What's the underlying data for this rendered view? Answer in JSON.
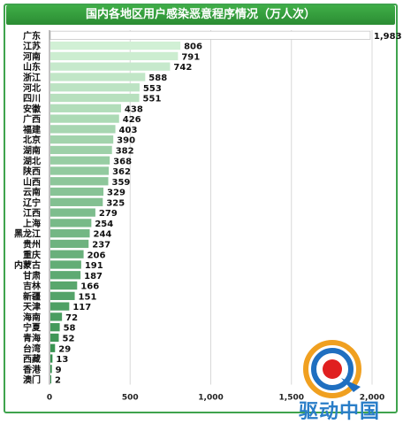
{
  "title": "国内各地区用户感染恶意程序情况（万人次）",
  "colors": {
    "title_bg": "#2e9638",
    "frame": "#3fa34d",
    "bar_dark": "#2a8a45",
    "bar_light": "#d6f3d9"
  },
  "chart_data": {
    "type": "bar",
    "orientation": "horizontal",
    "title": "国内各地区用户感染恶意程序情况（万人次）",
    "categories": [
      "广东",
      "江苏",
      "河南",
      "山东",
      "浙江",
      "河北",
      "四川",
      "安徽",
      "广西",
      "福建",
      "北京",
      "湖南",
      "湖北",
      "陕西",
      "山西",
      "云南",
      "辽宁",
      "江西",
      "上海",
      "黑龙江",
      "贵州",
      "重庆",
      "内蒙古",
      "甘肃",
      "吉林",
      "新疆",
      "天津",
      "海南",
      "宁夏",
      "青海",
      "台湾",
      "西藏",
      "香港",
      "澳门"
    ],
    "values": [
      1983,
      806,
      791,
      742,
      588,
      553,
      551,
      438,
      426,
      403,
      390,
      382,
      368,
      362,
      359,
      329,
      325,
      279,
      254,
      244,
      237,
      206,
      191,
      187,
      166,
      151,
      117,
      72,
      58,
      52,
      29,
      13,
      9,
      2
    ],
    "value_labels": [
      "1,983",
      "806",
      "791",
      "742",
      "588",
      "553",
      "551",
      "438",
      "426",
      "403",
      "390",
      "382",
      "368",
      "362",
      "359",
      "329",
      "325",
      "279",
      "254",
      "244",
      "237",
      "206",
      "191",
      "187",
      "166",
      "151",
      "117",
      "72",
      "58",
      "52",
      "29",
      "13",
      "9",
      "2"
    ],
    "xlim": [
      0,
      2000
    ],
    "xticks": [
      0,
      500,
      1000,
      1500,
      2000
    ],
    "xtick_labels": [
      "0",
      "500",
      "1,000",
      "1,500",
      "2,000"
    ],
    "grid": "vertical"
  },
  "watermark": {
    "text": "驱动中国",
    "logo_icon": "qudong-logo-icon"
  }
}
